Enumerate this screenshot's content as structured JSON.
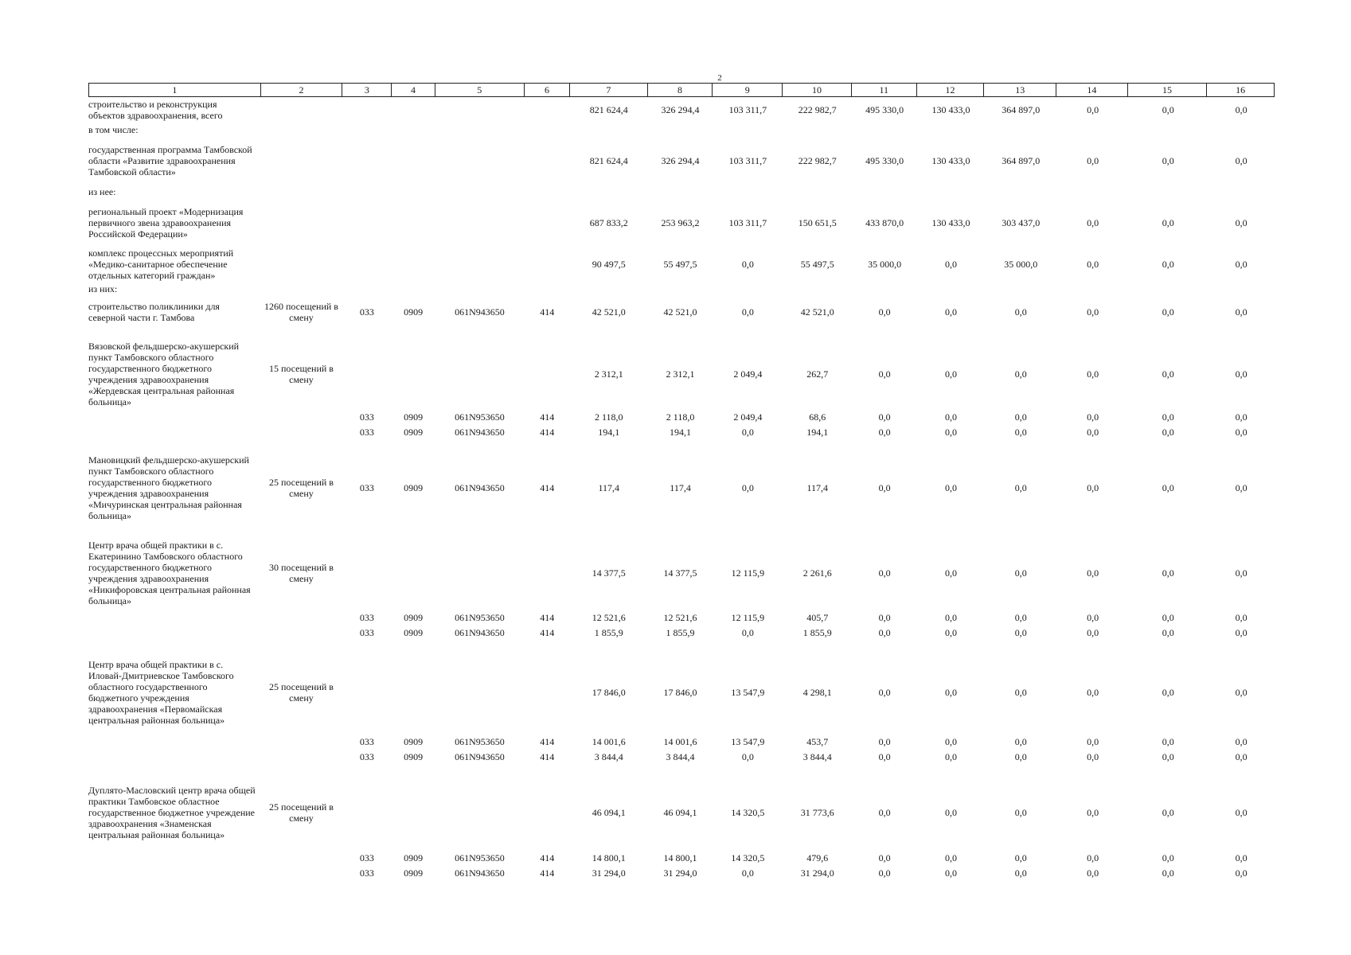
{
  "page_number": "2",
  "header_columns": [
    "1",
    "2",
    "3",
    "4",
    "5",
    "6",
    "7",
    "8",
    "9",
    "10",
    "11",
    "12",
    "13",
    "14",
    "15",
    "16"
  ],
  "rows": [
    {
      "type": "main",
      "name": "строительство и реконструкция объектов здравоохранения, всего",
      "capacity": "",
      "codes": [
        "",
        "",
        "",
        ""
      ],
      "values": [
        "821 624,4",
        "326 294,4",
        "103 311,7",
        "222 982,7",
        "495 330,0",
        "130 433,0",
        "364 897,0",
        "0,0",
        "0,0",
        "0,0"
      ],
      "height": 32
    },
    {
      "type": "label",
      "name": "в том числе:"
    },
    {
      "type": "main",
      "name": "государственная программа Тамбовской области «Развитие здравоохранения Тамбовской области»",
      "capacity": "",
      "codes": [
        "",
        "",
        "",
        ""
      ],
      "values": [
        "821 624,4",
        "326 294,4",
        "103 311,7",
        "222 982,7",
        "495 330,0",
        "130 433,0",
        "364 897,0",
        "0,0",
        "0,0",
        "0,0"
      ],
      "height": 60
    },
    {
      "type": "label",
      "name": "из нее:"
    },
    {
      "type": "main",
      "name": "региональный проект «Модернизация первичного звена здравоохранения Российской Федерации»",
      "capacity": "",
      "codes": [
        "",
        "",
        "",
        ""
      ],
      "values": [
        "687 833,2",
        "253 963,2",
        "103 311,7",
        "150 651,5",
        "433 870,0",
        "130 433,0",
        "303 437,0",
        "0,0",
        "0,0",
        "0,0"
      ],
      "height": 60
    },
    {
      "type": "main",
      "name": "комплекс процессных мероприятий «Медико-санитарное обеспечение отдельных категорий граждан»",
      "capacity": "",
      "codes": [
        "",
        "",
        "",
        ""
      ],
      "values": [
        "90 497,5",
        "55 497,5",
        "0,0",
        "55 497,5",
        "35 000,0",
        "0,0",
        "35 000,0",
        "0,0",
        "0,0",
        "0,0"
      ],
      "height": 44
    },
    {
      "type": "label",
      "name": "из них:"
    },
    {
      "type": "main",
      "name": "строительство поликлиники для северной части г. Тамбова",
      "capacity": "1260 посещений в смену",
      "codes": [
        "033",
        "0909",
        "061N943650",
        "414"
      ],
      "values": [
        "42 521,0",
        "42 521,0",
        "0,0",
        "42 521,0",
        "0,0",
        "0,0",
        "0,0",
        "0,0",
        "0,0",
        "0,0"
      ],
      "height": 40
    },
    {
      "type": "gap"
    },
    {
      "type": "main",
      "name": "Вязовской фельдшерско-акушерский пункт Тамбовского областного государственного бюджетного учреждения здравоохранения «Жердевская центральная районная больница»",
      "capacity": "15 посещений в смену",
      "codes": [
        "",
        "",
        "",
        ""
      ],
      "values": [
        "2 312,1",
        "2 312,1",
        "2 049,4",
        "262,7",
        "0,0",
        "0,0",
        "0,0",
        "0,0",
        "0,0",
        "0,0"
      ],
      "height": 88
    },
    {
      "type": "sub",
      "codes": [
        "033",
        "0909",
        "061N953650",
        "414"
      ],
      "values": [
        "2 118,0",
        "2 118,0",
        "2 049,4",
        "68,6",
        "0,0",
        "0,0",
        "0,0",
        "0,0",
        "0,0",
        "0,0"
      ]
    },
    {
      "type": "sub",
      "codes": [
        "033",
        "0909",
        "061N943650",
        "414"
      ],
      "values": [
        "194,1",
        "194,1",
        "0,0",
        "194,1",
        "0,0",
        "0,0",
        "0,0",
        "0,0",
        "0,0",
        "0,0"
      ]
    },
    {
      "type": "gap"
    },
    {
      "type": "main",
      "name": "Мановицкий фельдшерско-акушерский пункт Тамбовского областного государственного бюджетного учреждения здравоохранения «Мичуринская центральная районная больница»",
      "capacity": "25 посещений в смену",
      "codes": [
        "033",
        "0909",
        "061N943650",
        "414"
      ],
      "values": [
        "117,4",
        "117,4",
        "0,0",
        "117,4",
        "0,0",
        "0,0",
        "0,0",
        "0,0",
        "0,0",
        "0,0"
      ],
      "height": 94
    },
    {
      "type": "gap"
    },
    {
      "type": "main",
      "name": "Центр врача общей практики в с. Екатеринино Тамбовского областного государственного бюджетного учреждения здравоохранения «Никифоровская центральная районная больница»",
      "capacity": "30 посещений в смену",
      "codes": [
        "",
        "",
        "",
        ""
      ],
      "values": [
        "14 377,5",
        "14 377,5",
        "12 115,9",
        "2 261,6",
        "0,0",
        "0,0",
        "0,0",
        "0,0",
        "0,0",
        "0,0"
      ],
      "height": 92
    },
    {
      "type": "sub",
      "codes": [
        "033",
        "0909",
        "061N953650",
        "414"
      ],
      "values": [
        "12 521,6",
        "12 521,6",
        "12 115,9",
        "405,7",
        "0,0",
        "0,0",
        "0,0",
        "0,0",
        "0,0",
        "0,0"
      ]
    },
    {
      "type": "sub",
      "codes": [
        "033",
        "0909",
        "061N943650",
        "414"
      ],
      "values": [
        "1 855,9",
        "1 855,9",
        "0,0",
        "1 855,9",
        "0,0",
        "0,0",
        "0,0",
        "0,0",
        "0,0",
        "0,0"
      ]
    },
    {
      "type": "gap"
    },
    {
      "type": "main",
      "name": "Центр врача общей практики в с. Иловай-Дмитриевское Тамбовского областного государственного бюджетного учреждения здравоохранения «Первомайская центральная районная больница»",
      "capacity": "25 посещений в смену",
      "codes": [
        "",
        "",
        "",
        ""
      ],
      "values": [
        "17 846,0",
        "17 846,0",
        "13 547,9",
        "4 298,1",
        "0,0",
        "0,0",
        "0,0",
        "0,0",
        "0,0",
        "0,0"
      ],
      "height": 104
    },
    {
      "type": "sub",
      "codes": [
        "033",
        "0909",
        "061N953650",
        "414"
      ],
      "values": [
        "14 001,6",
        "14 001,6",
        "13 547,9",
        "453,7",
        "0,0",
        "0,0",
        "0,0",
        "0,0",
        "0,0",
        "0,0"
      ]
    },
    {
      "type": "sub",
      "codes": [
        "033",
        "0909",
        "061N943650",
        "414"
      ],
      "values": [
        "3 844,4",
        "3 844,4",
        "0,0",
        "3 844,4",
        "0,0",
        "0,0",
        "0,0",
        "0,0",
        "0,0",
        "0,0"
      ]
    },
    {
      "type": "gap"
    },
    {
      "type": "main",
      "name": "Дуплято-Масловский центр врача общей практики Тамбовское областное государственное бюджетное учреждение здравоохранения «Знаменская центральная районная больница»",
      "capacity": "25 посещений в смену",
      "codes": [
        "",
        "",
        "",
        ""
      ],
      "values": [
        "46 094,1",
        "46 094,1",
        "14 320,5",
        "31 773,6",
        "0,0",
        "0,0",
        "0,0",
        "0,0",
        "0,0",
        "0,0"
      ],
      "height": 94
    },
    {
      "type": "sub",
      "codes": [
        "033",
        "0909",
        "061N953650",
        "414"
      ],
      "values": [
        "14 800,1",
        "14 800,1",
        "14 320,5",
        "479,6",
        "0,0",
        "0,0",
        "0,0",
        "0,0",
        "0,0",
        "0,0"
      ]
    },
    {
      "type": "sub",
      "codes": [
        "033",
        "0909",
        "061N943650",
        "414"
      ],
      "values": [
        "31 294,0",
        "31 294,0",
        "0,0",
        "31 294,0",
        "0,0",
        "0,0",
        "0,0",
        "0,0",
        "0,0",
        "0,0"
      ]
    }
  ]
}
